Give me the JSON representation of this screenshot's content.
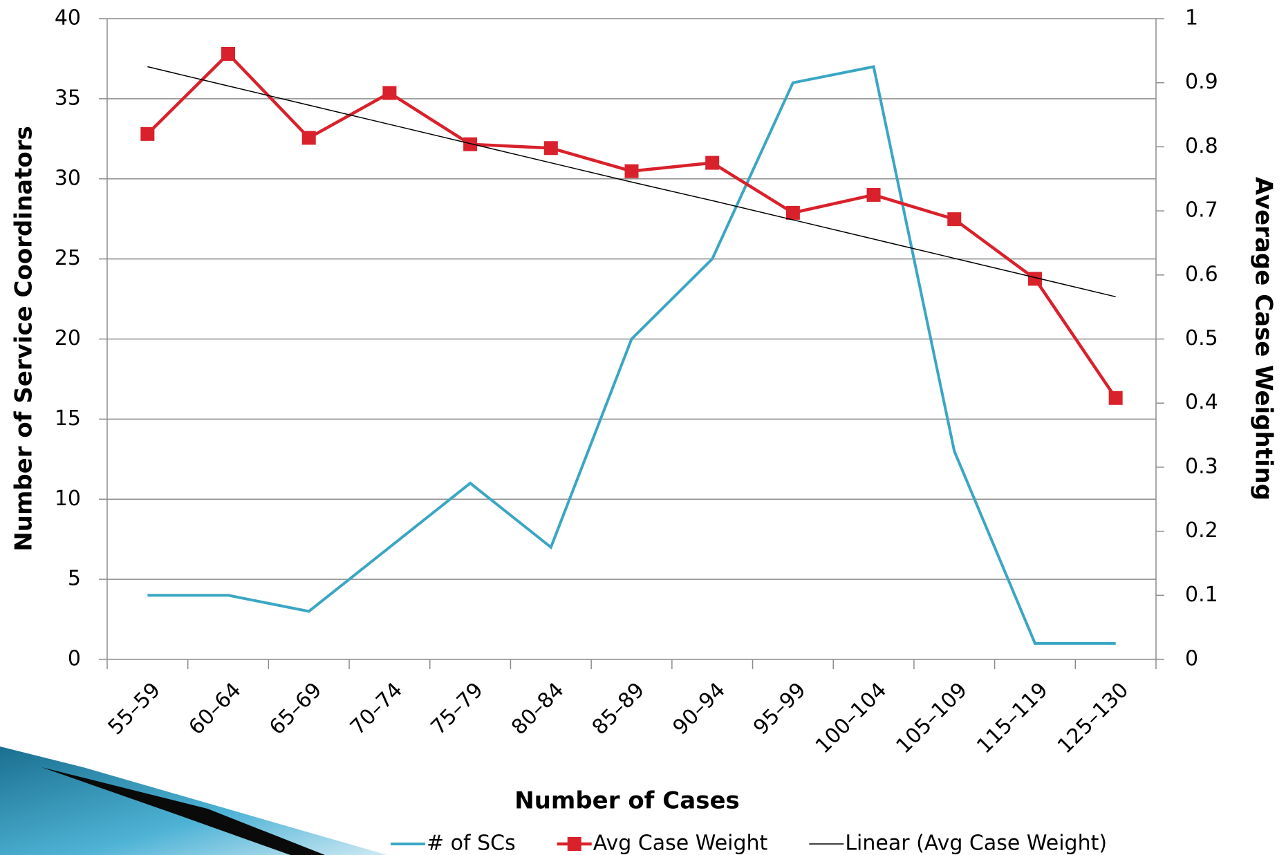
{
  "chart_data": {
    "type": "line",
    "x_label": "Number of Cases",
    "y_label": "Number of Service Coordinators",
    "y2_label": "Average Case Weighting",
    "categories": [
      "55–59",
      "60–64",
      "65–69",
      "70–74",
      "75–79",
      "80–84",
      "85–89",
      "90–94",
      "95–99",
      "100–104",
      "105–109",
      "115–119",
      "125–130"
    ],
    "series": [
      {
        "name": "# of SCs",
        "color": "#3aa6c4",
        "values": [
          4,
          4,
          3,
          7,
          11,
          7,
          20,
          25,
          36,
          37,
          13,
          1,
          1
        ]
      },
      {
        "name": "Avg Case Weight",
        "color": "#d9212c",
        "axis": "y2",
        "marker": "square",
        "values": [
          0.82,
          0.945,
          0.814,
          0.884,
          0.804,
          0.798,
          0.762,
          0.775,
          0.697,
          0.725,
          0.687,
          0.594,
          0.408
        ]
      },
      {
        "name": "Linear (Avg Case Weight)",
        "color": "#000000",
        "axis": "y2",
        "values": [
          0.925,
          0.895,
          0.865,
          0.835,
          0.805,
          0.775,
          0.745,
          0.716,
          0.686,
          0.656,
          0.626,
          0.596,
          0.566
        ]
      }
    ],
    "ylim": [
      0,
      40
    ],
    "yticks": [
      0,
      5,
      10,
      15,
      20,
      25,
      30,
      35,
      40
    ],
    "y2lim": [
      0,
      1
    ],
    "y2ticks": [
      0,
      0.1,
      0.2,
      0.3,
      0.4,
      0.5,
      0.6,
      0.7,
      0.8,
      0.9,
      1
    ],
    "grid": true,
    "legend": "bottom"
  }
}
